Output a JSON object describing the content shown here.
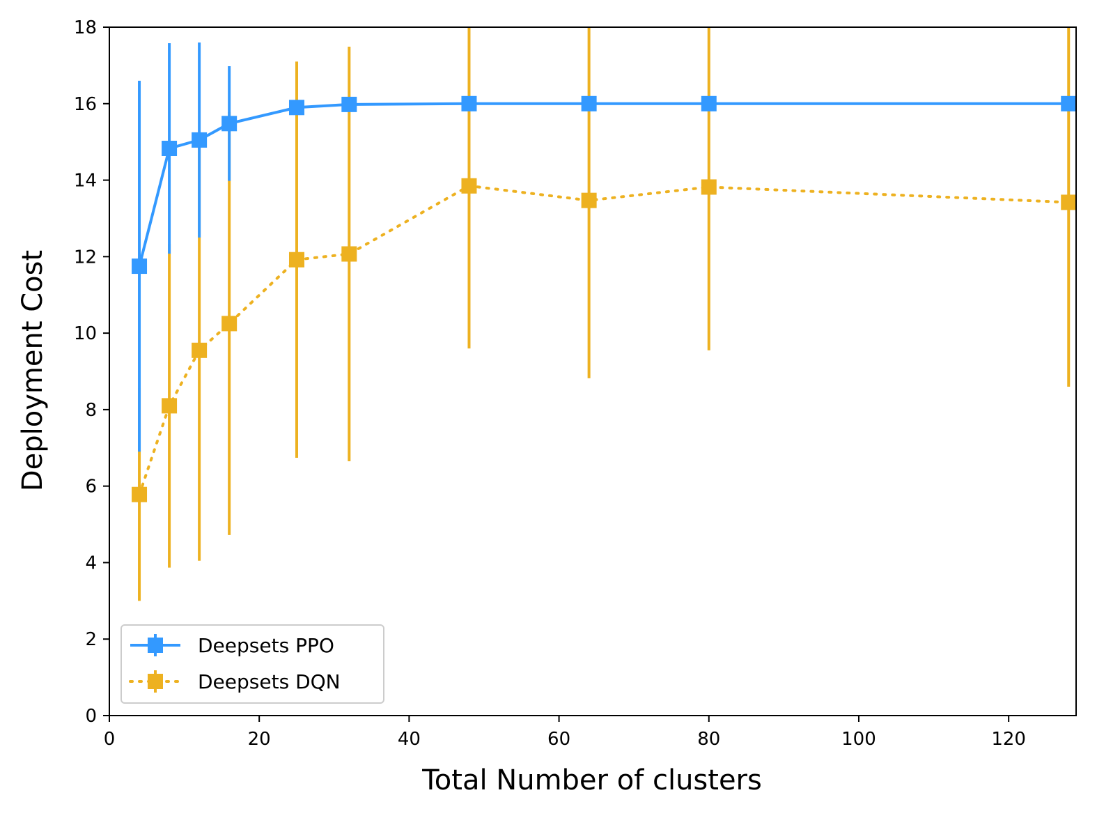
{
  "chart_data": {
    "type": "line",
    "title": "",
    "xlabel": "Total Number of clusters",
    "ylabel": "Deployment Cost",
    "xlim": [
      0,
      129
    ],
    "ylim": [
      0,
      18
    ],
    "xticks": [
      0,
      20,
      40,
      60,
      80,
      100,
      120
    ],
    "yticks": [
      0,
      2,
      4,
      6,
      8,
      10,
      12,
      14,
      16,
      18
    ],
    "grid": false,
    "legend_position": "lower-left",
    "x": [
      4,
      8,
      12,
      16,
      25,
      32,
      48,
      64,
      80,
      128
    ],
    "series": [
      {
        "name": "Deepsets PPO",
        "color": "#3399ff",
        "line_style": "solid",
        "marker": "square",
        "values": [
          11.75,
          14.83,
          15.05,
          15.48,
          15.9,
          15.98,
          16.0,
          16.0,
          16.0,
          16.0
        ],
        "error": [
          4.85,
          2.75,
          2.55,
          1.5,
          0.0,
          0.0,
          0.0,
          0.0,
          0.0,
          0.0
        ]
      },
      {
        "name": "Deepsets DQN",
        "color": "#edb120",
        "line_style": "dotted",
        "marker": "square",
        "values": [
          5.78,
          8.1,
          9.55,
          10.25,
          11.92,
          12.07,
          13.85,
          13.47,
          13.82,
          13.42
        ],
        "error": [
          2.78,
          4.23,
          5.5,
          5.53,
          5.18,
          5.42,
          4.25,
          4.65,
          4.27,
          4.82
        ]
      }
    ]
  }
}
